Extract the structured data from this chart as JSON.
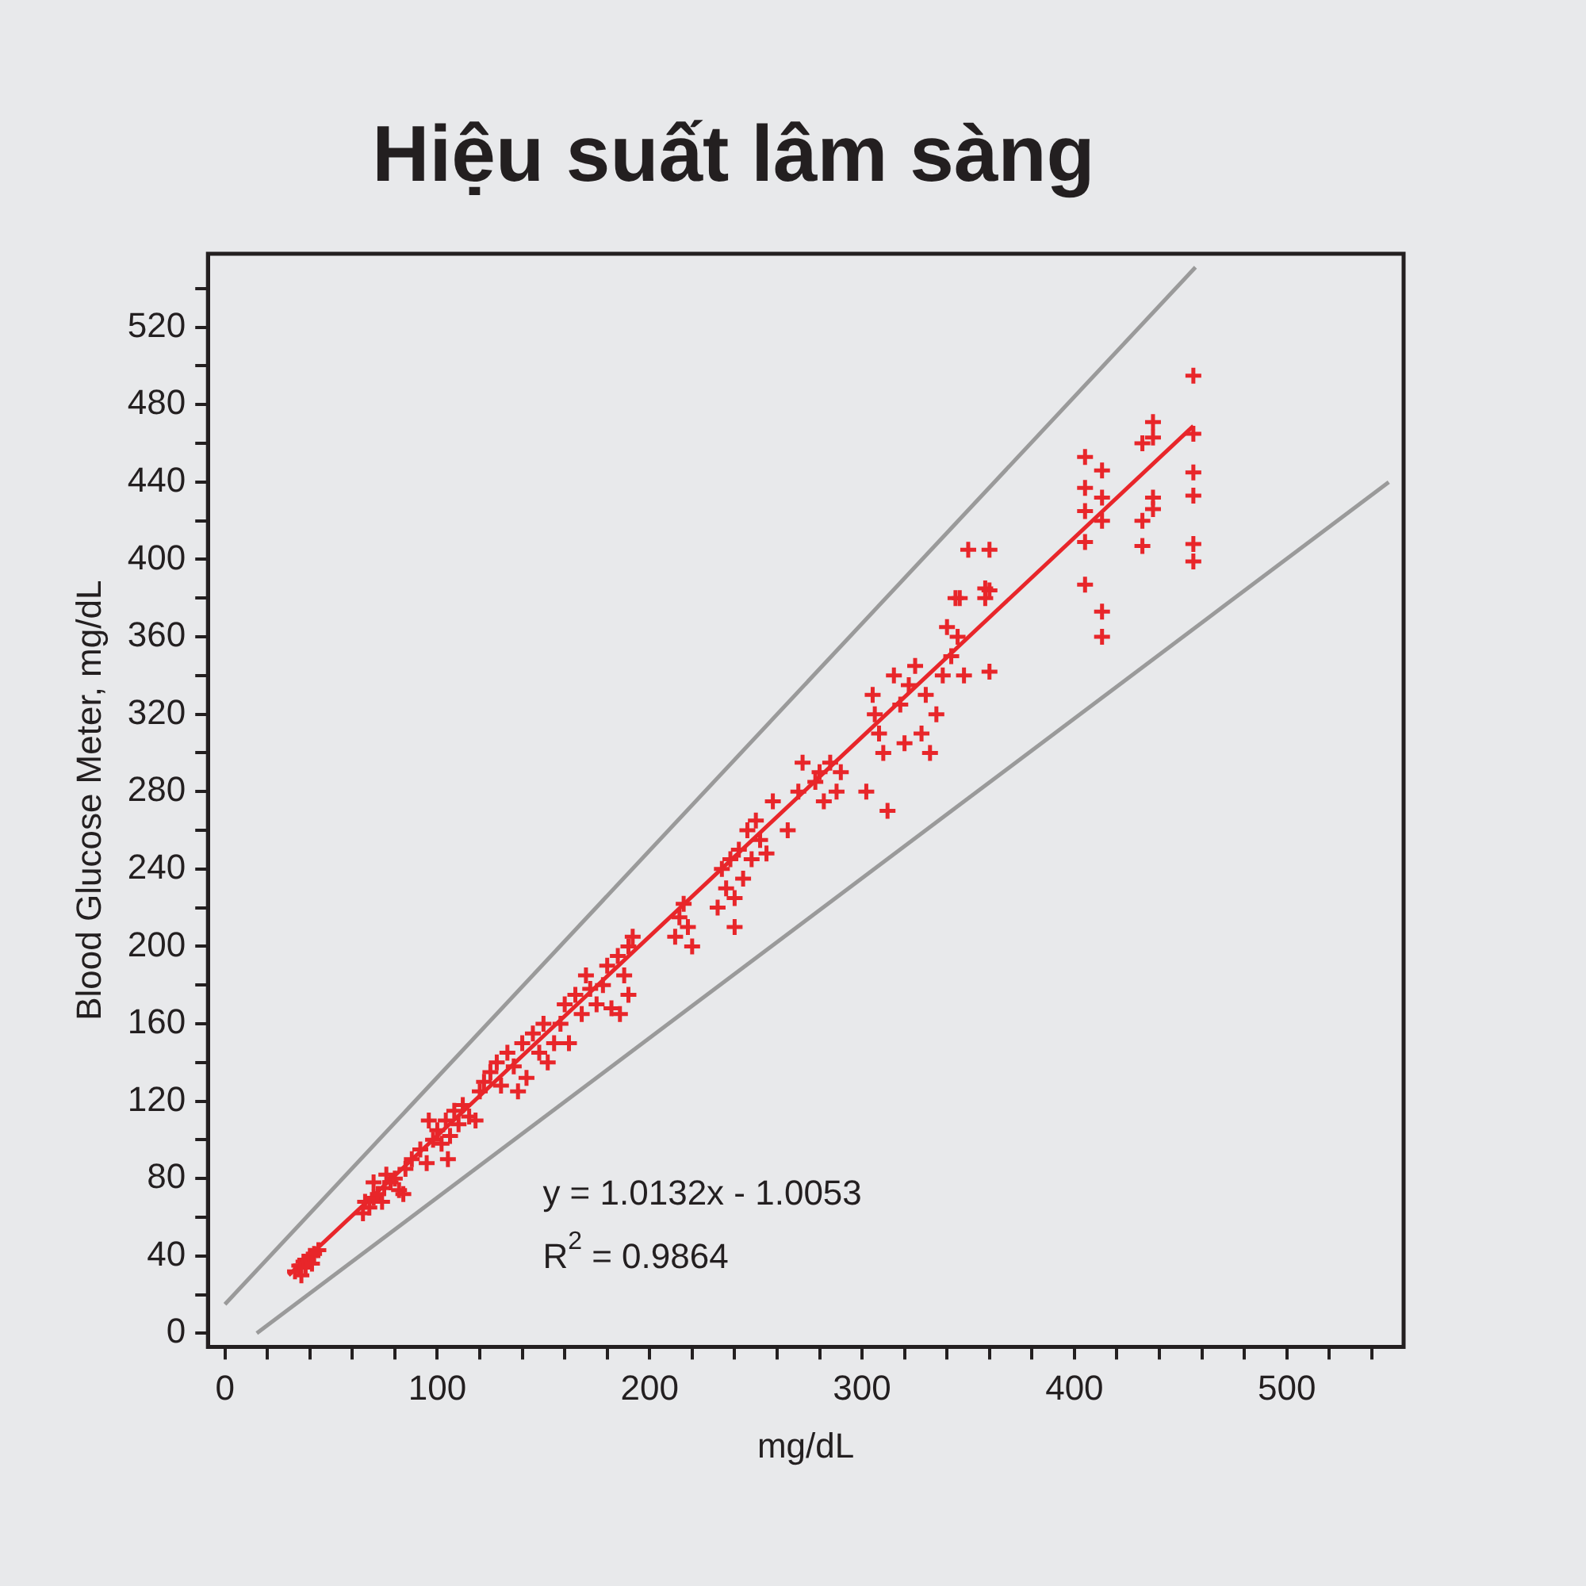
{
  "chart_data": {
    "type": "scatter",
    "title": "Hiệu suất lâm sàng",
    "xlabel": "mg/dL",
    "ylabel": "Blood Glucose Meter, mg/dL",
    "grid": false,
    "legend": false,
    "xlim": [
      -8,
      555
    ],
    "ylim": [
      -7,
      558
    ],
    "xticks": [
      0,
      {
        "value": 20,
        "label": null
      },
      {
        "value": 40,
        "label": null
      },
      {
        "value": 60,
        "label": null
      },
      {
        "value": 80,
        "label": null
      },
      100,
      {
        "value": 120,
        "label": null
      },
      {
        "value": 140,
        "label": null
      },
      {
        "value": 160,
        "label": null
      },
      {
        "value": 180,
        "label": null
      },
      200,
      {
        "value": 220,
        "label": null
      },
      {
        "value": 240,
        "label": null
      },
      {
        "value": 260,
        "label": null
      },
      {
        "value": 280,
        "label": null
      },
      300,
      {
        "value": 320,
        "label": null
      },
      {
        "value": 340,
        "label": null
      },
      {
        "value": 360,
        "label": null
      },
      {
        "value": 380,
        "label": null
      },
      400,
      {
        "value": 420,
        "label": null
      },
      {
        "value": 440,
        "label": null
      },
      {
        "value": 460,
        "label": null
      },
      {
        "value": 480,
        "label": null
      },
      500,
      {
        "value": 520,
        "label": null
      },
      {
        "value": 540,
        "label": null
      }
    ],
    "yticks": [
      0,
      {
        "value": 20,
        "label": null
      },
      40,
      {
        "value": 60,
        "label": null
      },
      80,
      {
        "value": 100,
        "label": null
      },
      120,
      {
        "value": 140,
        "label": null
      },
      160,
      {
        "value": 180,
        "label": null
      },
      200,
      {
        "value": 220,
        "label": null
      },
      240,
      {
        "value": 260,
        "label": null
      },
      280,
      {
        "value": 300,
        "label": null
      },
      320,
      {
        "value": 340,
        "label": null
      },
      360,
      {
        "value": 380,
        "label": null
      },
      400,
      {
        "value": 420,
        "label": null
      },
      440,
      {
        "value": 460,
        "label": null
      },
      480,
      {
        "value": 500,
        "label": null
      },
      520,
      {
        "value": 540,
        "label": null
      }
    ],
    "annotations": [
      "y = 1.0132x - 1.0053",
      "R$^{2}$ = 0.9864"
    ],
    "series": [
      {
        "marker": "cross",
        "color": "#e8262a",
        "x": [
          33,
          35,
          37,
          39,
          40,
          42,
          44,
          36,
          38,
          41,
          65,
          66,
          68,
          70,
          72,
          74,
          75,
          78,
          80,
          82,
          85,
          88,
          70,
          76,
          84,
          92,
          95,
          98,
          100,
          102,
          104,
          106,
          108,
          110,
          112,
          115,
          118,
          120,
          96,
          105,
          122,
          125,
          128,
          130,
          133,
          136,
          140,
          142,
          145,
          148,
          150,
          152,
          155,
          138,
          158,
          160,
          162,
          165,
          168,
          170,
          172,
          175,
          178,
          180,
          182,
          185,
          188,
          190,
          190,
          192,
          186,
          212,
          214,
          216,
          218,
          220,
          232,
          234,
          236,
          238,
          240,
          242,
          244,
          246,
          248,
          250,
          252,
          255,
          240,
          258,
          265,
          270,
          272,
          278,
          280,
          282,
          285,
          288,
          290,
          302,
          305,
          306,
          308,
          310,
          312,
          315,
          318,
          320,
          322,
          325,
          328,
          330,
          332,
          335,
          338,
          340,
          342,
          345,
          346,
          348,
          350,
          358,
          358,
          360,
          360,
          360,
          344,
          405,
          413,
          405,
          405,
          413,
          413,
          405,
          405,
          413,
          413,
          432,
          437,
          437,
          432,
          432,
          437,
          437,
          456,
          456,
          456,
          456,
          456,
          456
        ],
        "values": [
          32,
          35,
          37,
          38,
          40,
          41,
          43,
          30,
          34,
          36,
          62,
          68,
          65,
          70,
          72,
          68,
          75,
          78,
          80,
          74,
          85,
          90,
          78,
          82,
          72,
          95,
          88,
          100,
          105,
          98,
          110,
          102,
          115,
          108,
          118,
          112,
          110,
          125,
          110,
          90,
          130,
          135,
          140,
          128,
          145,
          138,
          150,
          132,
          155,
          145,
          160,
          140,
          150,
          125,
          160,
          170,
          150,
          175,
          165,
          185,
          178,
          170,
          180,
          190,
          168,
          195,
          185,
          200,
          175,
          205,
          165,
          205,
          215,
          222,
          210,
          200,
          220,
          240,
          230,
          245,
          210,
          250,
          235,
          260,
          245,
          265,
          255,
          248,
          225,
          275,
          260,
          280,
          295,
          285,
          290,
          275,
          295,
          280,
          290,
          280,
          330,
          320,
          310,
          300,
          270,
          340,
          325,
          305,
          335,
          345,
          310,
          330,
          300,
          320,
          340,
          365,
          350,
          360,
          380,
          340,
          405,
          385,
          380,
          405,
          384,
          342,
          380,
          453,
          446,
          437,
          425,
          432,
          420,
          409,
          387,
          373,
          360,
          460,
          471,
          463,
          420,
          407,
          432,
          426,
          495,
          465,
          445,
          433,
          408,
          399
        ]
      },
      {
        "type": "line",
        "marker": "none",
        "color": "#e8262a",
        "x": [
          30,
          456
        ],
        "values": [
          30,
          469
        ]
      },
      {
        "type": "line",
        "marker": "none",
        "color": "#9a9a9a",
        "x": [
          0,
          457
        ],
        "values": [
          15,
          551
        ]
      },
      {
        "type": "line",
        "marker": "none",
        "color": "#9a9a9a",
        "x": [
          15,
          548
        ],
        "values": [
          0,
          440
        ]
      }
    ]
  }
}
